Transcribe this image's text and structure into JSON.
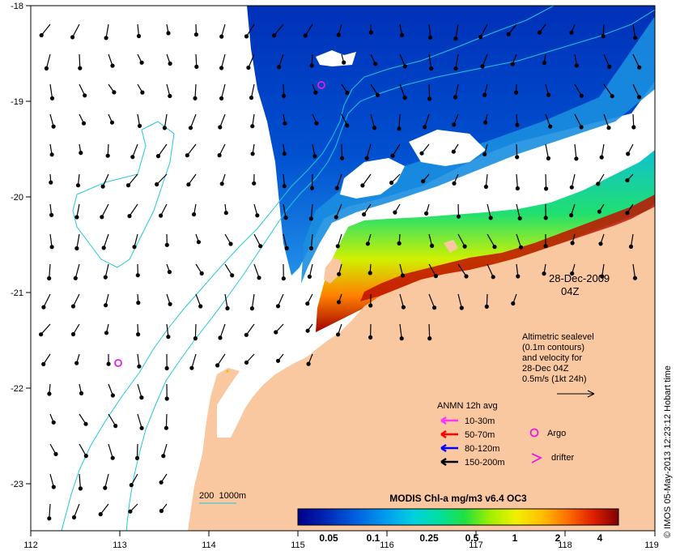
{
  "map": {
    "lon_ticks": [
      "112",
      "113",
      "114",
      "115",
      "116",
      "117",
      "118",
      "119"
    ],
    "lat_ticks": [
      "-18",
      "-19",
      "-20",
      "-21",
      "-22",
      "-23"
    ],
    "date": "28-Dec-2009",
    "hour": "04Z",
    "bathymetry_label": "200  1000m",
    "credit": "© IMOS 05-May-2013 12:23:12 Hobart time"
  },
  "legend": {
    "altimetry_lines": [
      "Altimetric sealevel",
      "(0.1m contours)",
      "and velocity for",
      "28-Dec 04Z",
      "0.5m/s (1kt 24h)"
    ],
    "anmn_title": "ANMN 12h avg",
    "anmn_items": [
      {
        "label": "10-30m",
        "color": "#ff33ff"
      },
      {
        "label": "50-70m",
        "color": "#ff0000"
      },
      {
        "label": "80-120m",
        "color": "#0000ff"
      },
      {
        "label": "150-200m",
        "color": "#000000"
      }
    ],
    "argo_label": "Argo",
    "drifter_label": "drifter"
  },
  "colorbar": {
    "title": "MODIS Chl-a mg/m3 v6.4 OC3",
    "tick_labels": [
      "0.05",
      "0.1",
      "0.25",
      "0.5",
      "1",
      "2",
      "4"
    ],
    "colors": [
      "#00008b",
      "#0022b0",
      "#0055dd",
      "#0090f0",
      "#00c8e8",
      "#00e0b0",
      "#00e070",
      "#60f020",
      "#d0f000",
      "#ffe000",
      "#ffa000",
      "#ff6000",
      "#e02000",
      "#a00000",
      "#7a0000"
    ]
  },
  "colors": {
    "land": "#fac8a0",
    "bathymetry": "#22c8d8",
    "argo": "#e020e0",
    "drifter": "#e020e0",
    "vectors": "#000000"
  }
}
